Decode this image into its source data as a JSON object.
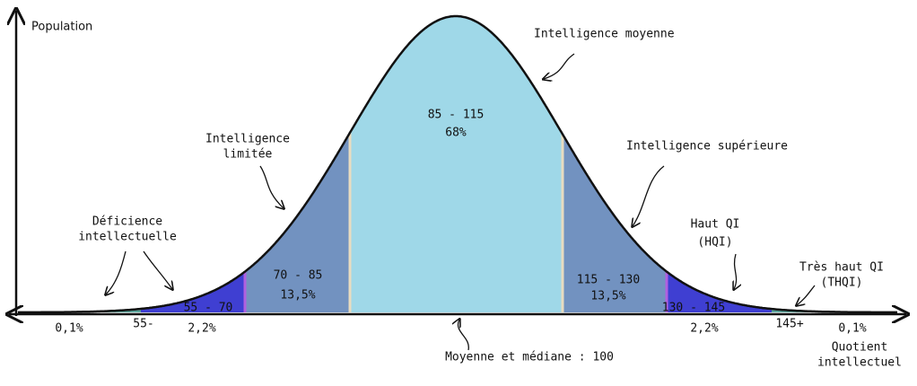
{
  "axes": {
    "y_label": "Population",
    "x_label": [
      "Quotient",
      "intellectuel"
    ],
    "mean_note": "Moyenne et médiane : 100"
  },
  "center": {
    "range": "85 - 115",
    "percent": "68%",
    "label": "Intelligence moyenne"
  },
  "left_mid": {
    "range": "70 - 85",
    "percent": "13,5%",
    "label": [
      "Intelligence",
      "limitée"
    ]
  },
  "right_mid": {
    "range": "115 - 130",
    "percent": "13,5%",
    "label": "Intelligence supérieure"
  },
  "left_low": {
    "range": "55 - 70",
    "percent": "2,2%",
    "label": [
      "Déficience",
      "intellectuelle"
    ]
  },
  "right_high": {
    "range": "130 - 145",
    "percent": "2,2%",
    "label": [
      "Haut QI",
      "(HQI)"
    ]
  },
  "left_tail": {
    "range": "55-",
    "percent": "0,1%"
  },
  "right_tail": {
    "range": "145+",
    "percent": "0,1%",
    "label": [
      "Très haut QI",
      "(THQI)"
    ]
  }
}
